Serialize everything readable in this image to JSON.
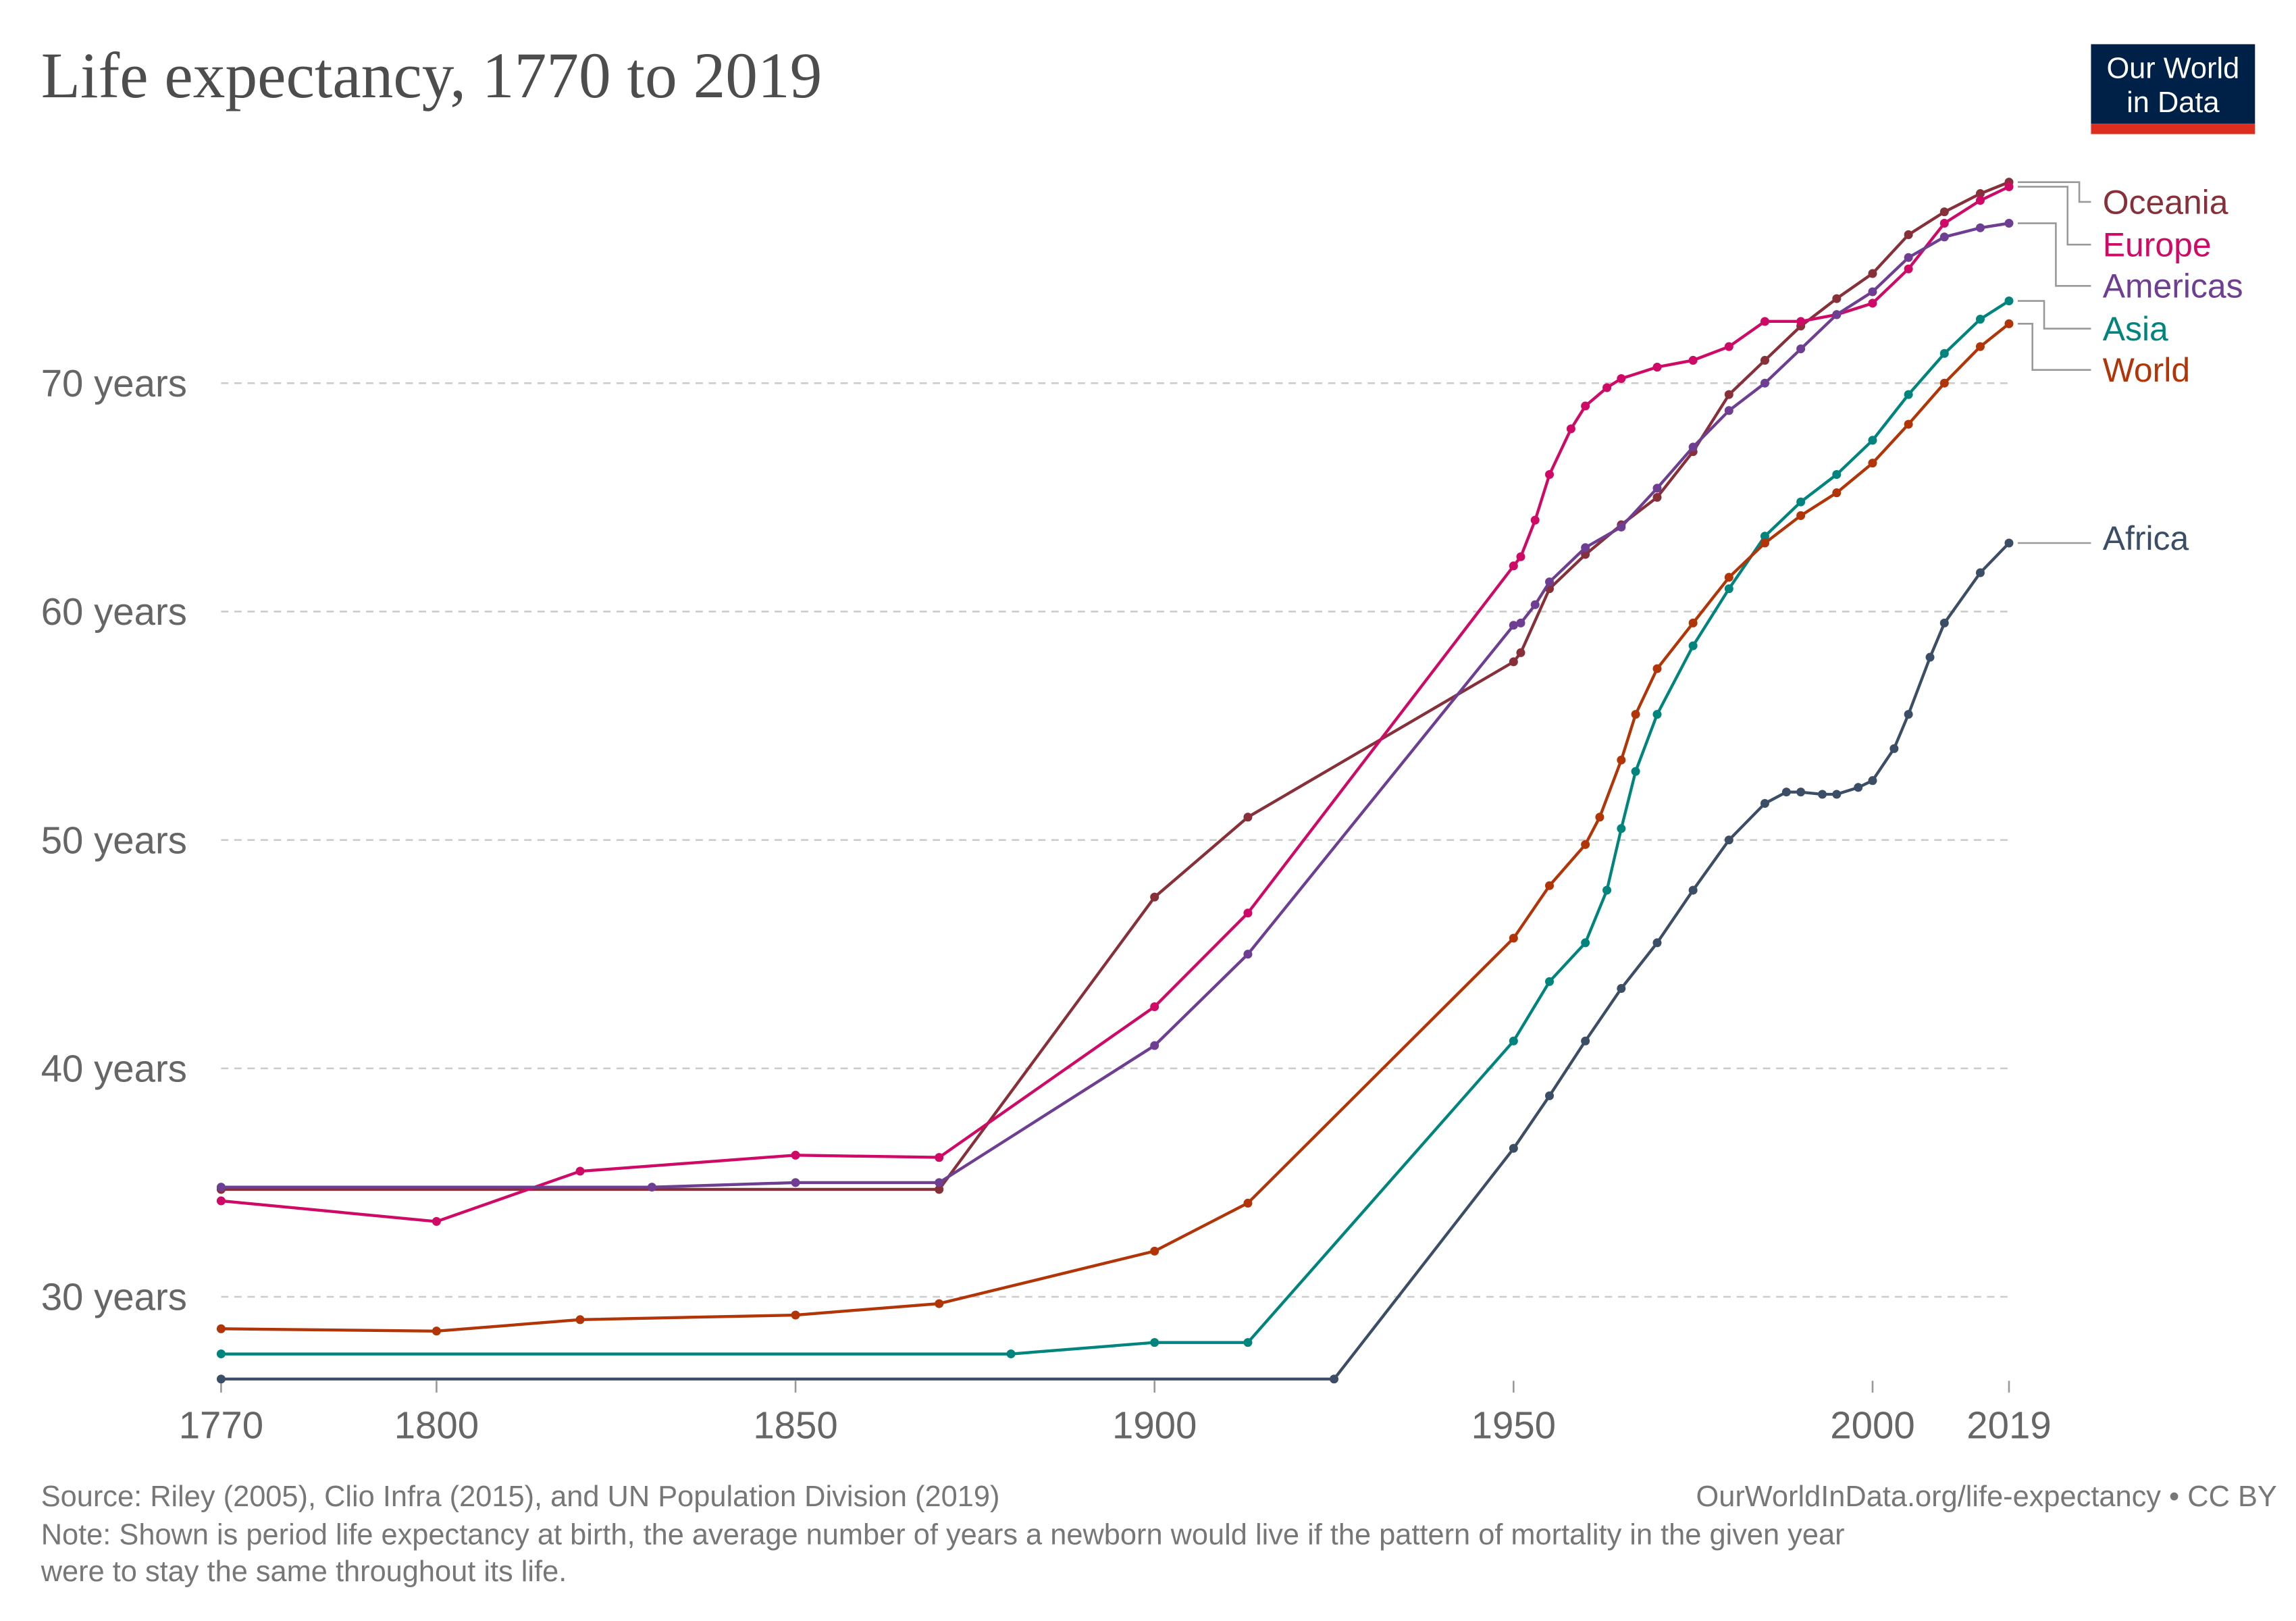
{
  "header": {
    "title": "Life expectancy, 1770 to 2019",
    "logo": "Our World in Data",
    "logo_line1": "Our World",
    "logo_line2": "in Data",
    "logo_bg": "#002147",
    "logo_accent": "#dc2e1f"
  },
  "footer": {
    "source": "Source: Riley (2005), Clio Infra (2015), and UN Population Division (2019)",
    "url": "OurWorldInData.org/life-expectancy • CC BY",
    "note_line1": "Note: Shown is period life expectancy at birth, the average number of years a newborn would live if the pattern of mortality in the given year",
    "note_line2": "were to stay the same throughout its life."
  },
  "chart_data": {
    "type": "line",
    "title": "Life expectancy, 1770 to 2019",
    "xlabel": "",
    "ylabel": "",
    "xlim": [
      1770,
      2019
    ],
    "ylim": [
      26,
      79
    ],
    "x_ticks": [
      1770,
      1800,
      1850,
      1900,
      1950,
      2000,
      2019
    ],
    "y_ticks": [
      30,
      40,
      50,
      60,
      70
    ],
    "y_tick_labels": [
      "30 years",
      "40 years",
      "50 years",
      "60 years",
      "70 years"
    ],
    "grid": "horizontal dashed",
    "legend": "right, line-end labels",
    "series": [
      {
        "name": "Oceania",
        "color": "#883039",
        "x": [
          1770,
          1870,
          1900,
          1913,
          1950,
          1951,
          1955,
          1960,
          1965,
          1970,
          1975,
          1980,
          1985,
          1990,
          1995,
          2000,
          2005,
          2010,
          2015,
          2019
        ],
        "y": [
          34.7,
          34.7,
          47.5,
          51,
          57.8,
          58.2,
          61,
          62.5,
          63.8,
          65,
          67,
          69.5,
          71,
          72.5,
          73.7,
          74.8,
          76.5,
          77.5,
          78.3,
          78.8
        ]
      },
      {
        "name": "Europe",
        "color": "#cf0a66",
        "x": [
          1770,
          1800,
          1820,
          1850,
          1870,
          1900,
          1913,
          1950,
          1951,
          1953,
          1955,
          1958,
          1960,
          1963,
          1965,
          1970,
          1975,
          1980,
          1985,
          1990,
          1995,
          2000,
          2005,
          2010,
          2015,
          2019
        ],
        "y": [
          34.2,
          33.3,
          35.5,
          36.2,
          36.1,
          42.7,
          46.8,
          62,
          62.4,
          64,
          66,
          68,
          69,
          69.8,
          70.2,
          70.7,
          71,
          71.6,
          72.7,
          72.7,
          73,
          73.5,
          75,
          77,
          78,
          78.6
        ]
      },
      {
        "name": "Americas",
        "color": "#6d3e91",
        "x": [
          1770,
          1830,
          1850,
          1870,
          1900,
          1913,
          1950,
          1951,
          1953,
          1955,
          1960,
          1965,
          1970,
          1975,
          1980,
          1985,
          1990,
          1995,
          2000,
          2005,
          2010,
          2015,
          2019
        ],
        "y": [
          34.8,
          34.8,
          35,
          35,
          41,
          45,
          59.4,
          59.5,
          60.3,
          61.3,
          62.8,
          63.7,
          65.4,
          67.2,
          68.8,
          70,
          71.5,
          73,
          74,
          75.5,
          76.4,
          76.8,
          77
        ]
      },
      {
        "name": "Asia",
        "color": "#00847e",
        "x": [
          1770,
          1880,
          1900,
          1913,
          1950,
          1955,
          1960,
          1963,
          1965,
          1967,
          1970,
          1975,
          1980,
          1985,
          1990,
          1995,
          2000,
          2005,
          2010,
          2015,
          2019
        ],
        "y": [
          27.5,
          27.5,
          28,
          28,
          41.2,
          43.8,
          45.5,
          47.8,
          50.5,
          53,
          55.5,
          58.5,
          61,
          63.3,
          64.8,
          66,
          67.5,
          69.5,
          71.3,
          72.8,
          73.6
        ]
      },
      {
        "name": "World",
        "color": "#b13507",
        "x": [
          1770,
          1800,
          1820,
          1850,
          1870,
          1900,
          1913,
          1950,
          1955,
          1960,
          1962,
          1965,
          1967,
          1970,
          1975,
          1980,
          1985,
          1990,
          1995,
          2000,
          2005,
          2010,
          2015,
          2019
        ],
        "y": [
          28.6,
          28.5,
          29,
          29.2,
          29.7,
          32,
          34.1,
          45.7,
          48,
          49.8,
          51,
          53.5,
          55.5,
          57.5,
          59.5,
          61.5,
          63,
          64.2,
          65.2,
          66.5,
          68.2,
          70,
          71.6,
          72.6
        ]
      },
      {
        "name": "Africa",
        "color": "#3c4e66",
        "x": [
          1770,
          1925,
          1950,
          1955,
          1960,
          1965,
          1970,
          1975,
          1980,
          1985,
          1988,
          1990,
          1993,
          1995,
          1998,
          2000,
          2003,
          2005,
          2008,
          2010,
          2015,
          2019
        ],
        "y": [
          26.4,
          26.4,
          36.5,
          38.8,
          41.2,
          43.5,
          45.5,
          47.8,
          50,
          51.6,
          52.1,
          52.1,
          52,
          52,
          52.3,
          52.6,
          54,
          55.5,
          58,
          59.5,
          61.7,
          63
        ]
      }
    ]
  }
}
